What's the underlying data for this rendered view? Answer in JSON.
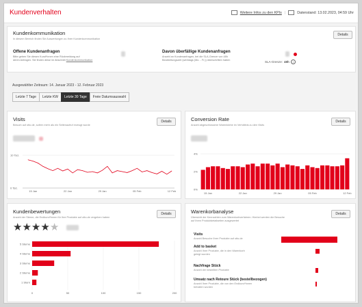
{
  "app": {
    "title": "Kundenverhalten"
  },
  "topbar": {
    "info_link": "Weitere Infos zu den KPIs",
    "data_status": "Datenstand: 13.02.2023, 04:59 Uhr"
  },
  "communication": {
    "title": "Kundenkommunikation",
    "subtitle": "In diesem Bereich finden Sie Auswertungen zu Ihrer Kundenkommunikation",
    "details_label": "Details",
    "open": {
      "title": "Offene Kundenanfragen",
      "desc_line1": "Bitte geben Sie diesen Kund*innen eine Rückmeldung auf",
      "desc_line2": "deren Anfragen. Sie finden diese im Abschnitt",
      "desc_link": "Kundenkommunikation"
    },
    "overdue": {
      "title": "Davon überfällige Kundenanfragen",
      "desc_line1": "Anzahl an Kundenanfragen, bei die SLA-Grenze von 48h",
      "desc_line2": "Bearbeitungszeit (werktags (Mo. - Fr.)) überschritten haben",
      "sla_label": "SLA-Grenze:",
      "sla_value": "48h",
      "info_icon": "info-icon",
      "alert_color": "#e2001a"
    }
  },
  "period": {
    "label": "Ausgewählter Zeitraum: 14. Januar 2023 - 12. Februar 2023",
    "options": [
      "Letzte 7 Tage",
      "Letzte KW",
      "Letzte 30 Tage",
      "Freie Datumsauswahl"
    ],
    "active_index": 2
  },
  "visits": {
    "title": "Visits",
    "subtitle": "Besuch auf otto.de, sofern mehr als ein Seitenaufruf erzeugt wurde",
    "details_label": "Details",
    "y_top": "10 Tsd.",
    "y_bottom": "0 Tsd."
  },
  "conversion": {
    "title": "Conversion Rate",
    "subtitle": "Anzahl abgeschlossene Warenkörbe im Verhältnis zu den Visits",
    "details_label": "Details",
    "y_labels": [
      "4%",
      "2%",
      "0%"
    ]
  },
  "ratings": {
    "title": "Kundenbewertungen",
    "subtitle": "Anzahl der Sterne, die Endkund*innen für Ihre Produkte auf otto.de vergeben haben",
    "details_label": "Details",
    "stars_filled": 4,
    "star_icon": "star-icon"
  },
  "cart": {
    "title": "Warenkorbanalyse",
    "subtitle_line1": "Übersicht der Kennzahlen zum Warenkorbverfahren. Hierbei werden die Besuche",
    "subtitle_line2": "auf Ihren Produktdetailseiten ausgewertet",
    "details_label": "Details",
    "rows": [
      {
        "title": "Visits",
        "desc1": "Anzahl Besuche Ihrer Produkte auf otto.de",
        "desc2": "",
        "share": 1.0
      },
      {
        "title": "Add to basket",
        "desc1": "Anzahl Ihrer Produkte, die in den Warenkorb",
        "desc2": "gelegt wurden",
        "share": 0.07
      },
      {
        "title": "Nachfrage Stück",
        "desc1": "Anzahl der bestellten Produkte",
        "desc2": "",
        "share": 0.05
      },
      {
        "title": "Umsatz nach Retoure Stück (bestellbezogen)",
        "desc1": "Anzahl Ihrer Produkte, die von den Endkund*innen",
        "desc2": "behalten wurden",
        "share": 0.03
      }
    ]
  },
  "chart_data": [
    {
      "type": "line",
      "x_ticks": [
        "15 Jan",
        "22 Jan",
        "29 Jan",
        "05 Feb",
        "12 Feb"
      ],
      "y_range": [
        0,
        10
      ],
      "y_unit": "Tsd.",
      "values": [
        8.6,
        8.2,
        7.6,
        6.6,
        5.9,
        5.3,
        6.0,
        5.2,
        5.8,
        4.6,
        5.6,
        5.3,
        4.8,
        5.0,
        4.6,
        5.4,
        6.6,
        4.6,
        5.3,
        5.0,
        4.7,
        5.3,
        6.0,
        4.9,
        5.3,
        4.7,
        4.3,
        5.1,
        4.2,
        5.2
      ]
    },
    {
      "type": "bar",
      "x_ticks": [
        "15 Jan",
        "22 Jan",
        "29 Jan",
        "05 Feb",
        "12 Feb"
      ],
      "y_range": [
        0,
        4
      ],
      "y_unit": "%",
      "values": [
        2.2,
        2.5,
        2.6,
        2.6,
        2.4,
        2.3,
        2.6,
        2.6,
        2.5,
        2.8,
        2.9,
        2.6,
        2.9,
        2.9,
        2.7,
        2.9,
        2.5,
        2.8,
        2.7,
        2.6,
        2.3,
        2.7,
        2.5,
        2.4,
        2.7,
        2.7,
        2.6,
        2.6,
        2.7,
        3.5
      ]
    },
    {
      "type": "bar",
      "orientation": "horizontal",
      "categories": [
        "5 Sterne",
        "4 Sterne",
        "3 Sterne",
        "2 Sterne",
        "1 Stern"
      ],
      "values": [
        178,
        54,
        31,
        8,
        6
      ],
      "x_ticks": [
        "0",
        "50",
        "100",
        "150",
        "200"
      ],
      "x_range": [
        0,
        200
      ],
      "color": "#e2001a"
    }
  ]
}
